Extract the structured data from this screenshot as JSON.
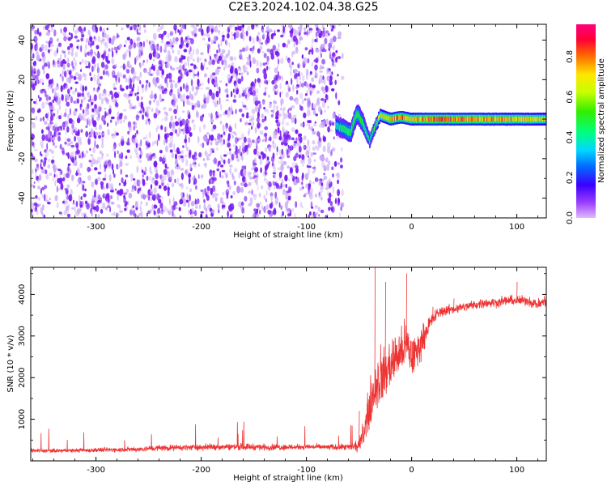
{
  "title": "C2E3.2024.102.04.38.G25",
  "colors": {
    "spectrum_noise": "#7a1ff0",
    "spectrum_noise_light": "#c9a8f7",
    "snr_line": "#ee3333"
  },
  "chart_data": [
    {
      "type": "heatmap",
      "title": "",
      "xlabel": "Height of straight line (km)",
      "ylabel": "Frequency (Hz)",
      "xlim": [
        -362,
        128
      ],
      "ylim": [
        -50,
        48
      ],
      "x_ticks": [
        -300,
        -200,
        -100,
        0,
        100
      ],
      "x_tick_labels": [
        "-300",
        "-200",
        "-100",
        "0",
        "100"
      ],
      "y_ticks": [
        -40,
        -20,
        0,
        20,
        40
      ],
      "y_tick_labels": [
        "-40",
        "-20",
        "0",
        "20",
        "40"
      ],
      "noise_region": {
        "x": [
          -362,
          -70
        ],
        "y": [
          -50,
          48
        ],
        "amplitude": 0.15
      },
      "signal_track": {
        "x": [
          -72,
          -65,
          -58,
          -52,
          -46,
          -40,
          -30,
          -20,
          -10,
          0,
          20,
          50,
          80,
          110,
          128
        ],
        "frequency": [
          -3,
          -5,
          -7,
          3,
          -2,
          -11,
          2,
          0,
          1,
          0,
          0,
          0,
          0,
          0,
          0
        ],
        "amplitude": [
          0.35,
          0.45,
          0.5,
          0.5,
          0.45,
          0.4,
          0.6,
          0.75,
          0.8,
          0.7,
          0.85,
          0.8,
          0.75,
          0.7,
          0.65
        ],
        "half_width_hz": [
          3,
          3,
          3,
          3,
          3,
          2,
          2,
          2,
          2,
          2,
          2,
          2,
          2,
          2,
          2
        ]
      },
      "grid": false
    },
    {
      "type": "line",
      "title": "",
      "xlabel": "Height of straight line (km)",
      "ylabel": "SNR (10 * v/v)",
      "xlim": [
        -362,
        128
      ],
      "ylim": [
        0,
        4650
      ],
      "x_ticks": [
        -300,
        -200,
        -100,
        0,
        100
      ],
      "x_tick_labels": [
        "-300",
        "-200",
        "-100",
        "0",
        "100"
      ],
      "y_ticks": [
        1000,
        2000,
        3000,
        4000
      ],
      "y_tick_labels": [
        "1000",
        "2000",
        "3000",
        "4000"
      ],
      "series": [
        {
          "x": [
            -362,
            -340,
            -320,
            -300,
            -280,
            -260,
            -240,
            -220,
            -200,
            -180,
            -160,
            -140,
            -120,
            -100,
            -80,
            -60,
            -50,
            -45,
            -40,
            -35,
            -30,
            -25,
            -20,
            -15,
            -10,
            -5,
            0,
            5,
            10,
            15,
            20,
            25,
            30,
            40,
            50,
            60,
            70,
            80,
            90,
            100,
            110,
            120,
            128
          ],
          "y": [
            250,
            240,
            250,
            260,
            270,
            280,
            310,
            320,
            330,
            340,
            340,
            330,
            330,
            340,
            330,
            330,
            350,
            700,
            1300,
            1800,
            2000,
            2100,
            2300,
            2500,
            2600,
            2800,
            2500,
            2600,
            2900,
            3200,
            3400,
            3550,
            3600,
            3650,
            3700,
            3750,
            3800,
            3800,
            3850,
            3850,
            3850,
            3750,
            3850
          ],
          "noise": [
            70,
            70,
            70,
            80,
            80,
            90,
            110,
            100,
            110,
            110,
            120,
            110,
            110,
            100,
            100,
            110,
            200,
            500,
            800,
            1000,
            1100,
            900,
            900,
            900,
            800,
            900,
            800,
            700,
            500,
            350,
            250,
            200,
            180,
            170,
            170,
            170,
            170,
            170,
            170,
            170,
            170,
            200,
            200
          ],
          "spike_x": [
            -60,
            -50,
            -35,
            -25,
            -5,
            20,
            40,
            100
          ],
          "spike_y": [
            280,
            1200,
            4650,
            4300,
            4500,
            3700,
            3900,
            4300
          ]
        }
      ],
      "grid": false
    }
  ],
  "colorbar": {
    "label": "Normalized spectral amplitude",
    "ticks": [
      0.0,
      0.2,
      0.4,
      0.6,
      0.8
    ],
    "tick_labels": [
      "0.0",
      "0.2",
      "0.4",
      "0.6",
      "0.8"
    ],
    "range": [
      0,
      0.96
    ]
  }
}
